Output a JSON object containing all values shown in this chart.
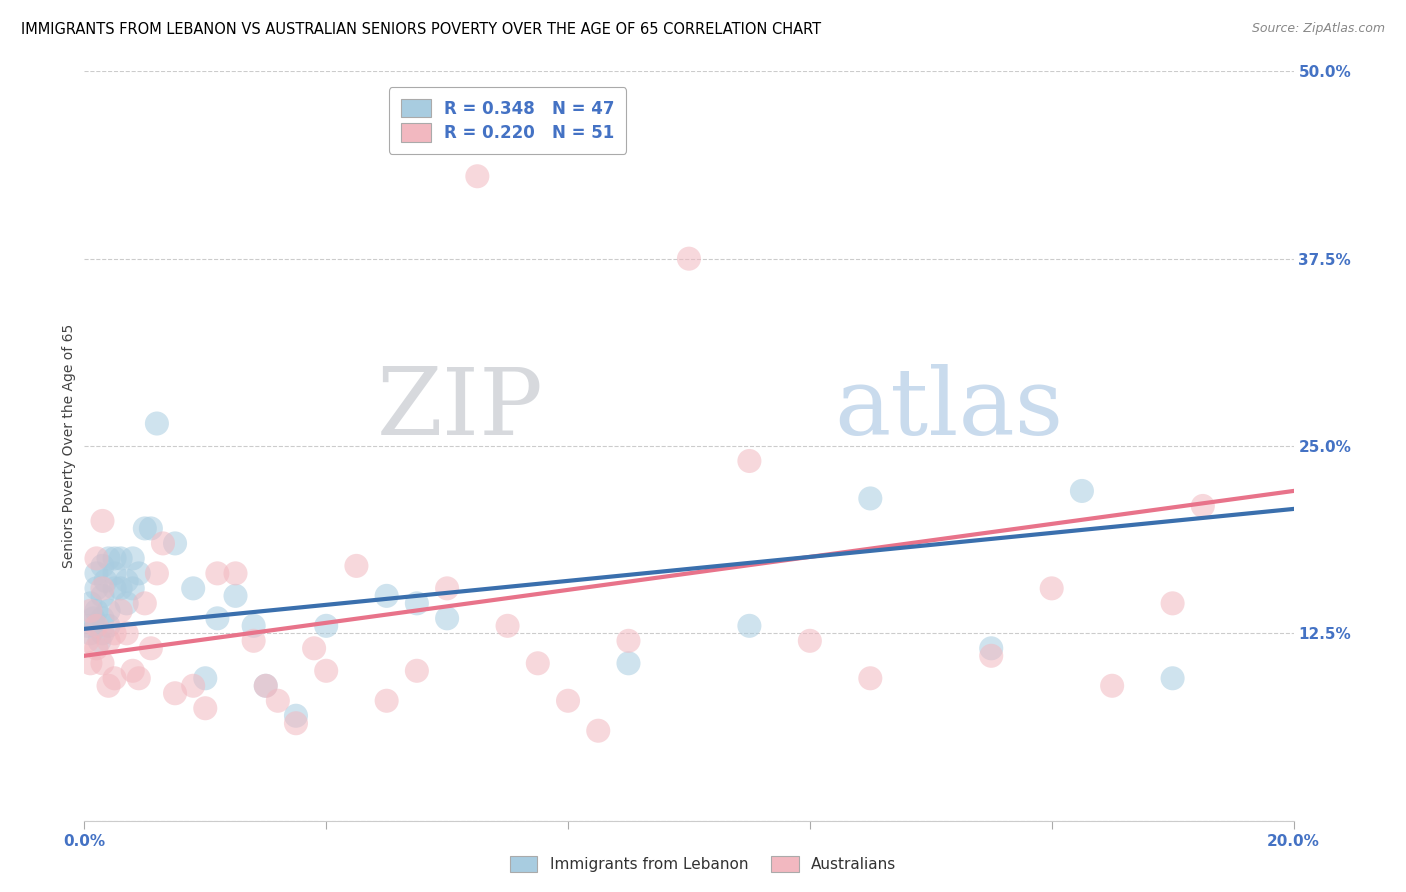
{
  "title": "IMMIGRANTS FROM LEBANON VS AUSTRALIAN SENIORS POVERTY OVER THE AGE OF 65 CORRELATION CHART",
  "source": "Source: ZipAtlas.com",
  "ylabel": "Seniors Poverty Over the Age of 65",
  "xlim": [
    0.0,
    0.2
  ],
  "ylim": [
    0.0,
    0.5
  ],
  "yticks": [
    0.0,
    0.125,
    0.25,
    0.375,
    0.5
  ],
  "ytick_labels": [
    "",
    "12.5%",
    "25.0%",
    "37.5%",
    "50.0%"
  ],
  "xticks": [
    0.0,
    0.04,
    0.08,
    0.12,
    0.16,
    0.2
  ],
  "xtick_labels": [
    "0.0%",
    "",
    "",
    "",
    "",
    "20.0%"
  ],
  "legend_blue_label": "R = 0.348   N = 47",
  "legend_pink_label": "R = 0.220   N = 51",
  "footer_blue": "Immigrants from Lebanon",
  "footer_pink": "Australians",
  "blue_color": "#a8cce0",
  "blue_line_color": "#3a6fad",
  "pink_color": "#f2b8c0",
  "pink_line_color": "#e8738a",
  "watermark_zip": "ZIP",
  "watermark_atlas": "atlas",
  "watermark_zip_color": "#d0d3d8",
  "watermark_atlas_color": "#b8cfe8",
  "background_color": "#ffffff",
  "grid_color": "#cccccc",
  "axis_label_color": "#4472c4",
  "title_color": "#000000",
  "blue_x": [
    0.0005,
    0.001,
    0.001,
    0.0015,
    0.002,
    0.002,
    0.002,
    0.0025,
    0.003,
    0.003,
    0.003,
    0.003,
    0.0035,
    0.004,
    0.004,
    0.004,
    0.005,
    0.005,
    0.005,
    0.006,
    0.006,
    0.007,
    0.007,
    0.008,
    0.008,
    0.009,
    0.01,
    0.011,
    0.012,
    0.015,
    0.018,
    0.02,
    0.022,
    0.025,
    0.028,
    0.03,
    0.035,
    0.04,
    0.05,
    0.055,
    0.06,
    0.09,
    0.11,
    0.13,
    0.15,
    0.165,
    0.18
  ],
  "blue_y": [
    0.13,
    0.145,
    0.125,
    0.135,
    0.14,
    0.155,
    0.165,
    0.12,
    0.135,
    0.15,
    0.125,
    0.17,
    0.16,
    0.175,
    0.14,
    0.13,
    0.155,
    0.165,
    0.175,
    0.155,
    0.175,
    0.16,
    0.145,
    0.155,
    0.175,
    0.165,
    0.195,
    0.195,
    0.265,
    0.185,
    0.155,
    0.095,
    0.135,
    0.15,
    0.13,
    0.09,
    0.07,
    0.13,
    0.15,
    0.145,
    0.135,
    0.105,
    0.13,
    0.215,
    0.115,
    0.22,
    0.095
  ],
  "pink_x": [
    0.0005,
    0.001,
    0.001,
    0.002,
    0.002,
    0.002,
    0.003,
    0.003,
    0.003,
    0.004,
    0.004,
    0.005,
    0.005,
    0.006,
    0.007,
    0.008,
    0.009,
    0.01,
    0.011,
    0.012,
    0.013,
    0.015,
    0.018,
    0.02,
    0.022,
    0.025,
    0.028,
    0.03,
    0.032,
    0.035,
    0.038,
    0.04,
    0.045,
    0.05,
    0.055,
    0.06,
    0.065,
    0.07,
    0.075,
    0.08,
    0.085,
    0.09,
    0.1,
    0.11,
    0.12,
    0.13,
    0.15,
    0.16,
    0.17,
    0.18,
    0.185
  ],
  "pink_y": [
    0.12,
    0.14,
    0.105,
    0.175,
    0.115,
    0.13,
    0.2,
    0.155,
    0.105,
    0.12,
    0.09,
    0.125,
    0.095,
    0.14,
    0.125,
    0.1,
    0.095,
    0.145,
    0.115,
    0.165,
    0.185,
    0.085,
    0.09,
    0.075,
    0.165,
    0.165,
    0.12,
    0.09,
    0.08,
    0.065,
    0.115,
    0.1,
    0.17,
    0.08,
    0.1,
    0.155,
    0.43,
    0.13,
    0.105,
    0.08,
    0.06,
    0.12,
    0.375,
    0.24,
    0.12,
    0.095,
    0.11,
    0.155,
    0.09,
    0.145,
    0.21
  ],
  "blue_line_x0": 0.0,
  "blue_line_y0": 0.128,
  "blue_line_x1": 0.2,
  "blue_line_y1": 0.208,
  "pink_line_x0": 0.0,
  "pink_line_y0": 0.11,
  "pink_line_x1": 0.2,
  "pink_line_y1": 0.22
}
